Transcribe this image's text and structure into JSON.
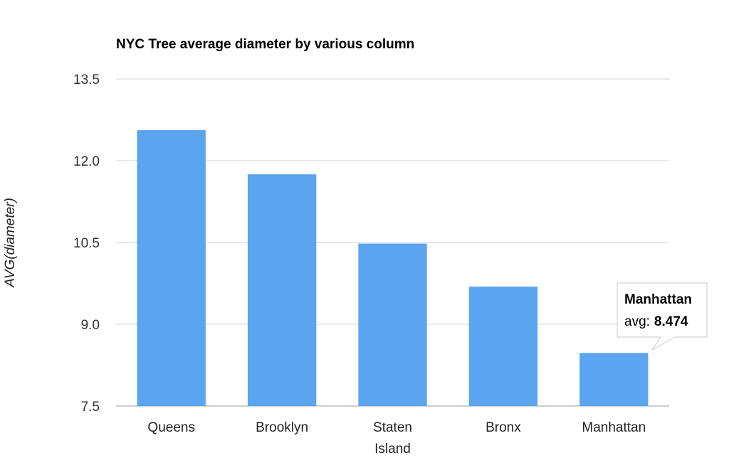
{
  "chart_data": {
    "type": "bar",
    "title": "NYC Tree average diameter by various column",
    "ylabel": "AVG(diameter)",
    "xlabel": "",
    "categories": [
      "Queens",
      "Brooklyn",
      "Staten Island",
      "Bronx",
      "Manhattan"
    ],
    "series": [
      {
        "values": [
          12.56,
          11.75,
          10.48,
          9.69,
          8.474
        ]
      }
    ],
    "ylim": [
      7.5,
      13.5
    ],
    "yticks": [
      "7.5",
      "9.0",
      "10.5",
      "12.0",
      "13.5"
    ],
    "grid": true,
    "bar_color": "#5ba5f0",
    "tooltip": {
      "title": "Manhattan",
      "label": "avg:",
      "value": "8.474"
    }
  }
}
